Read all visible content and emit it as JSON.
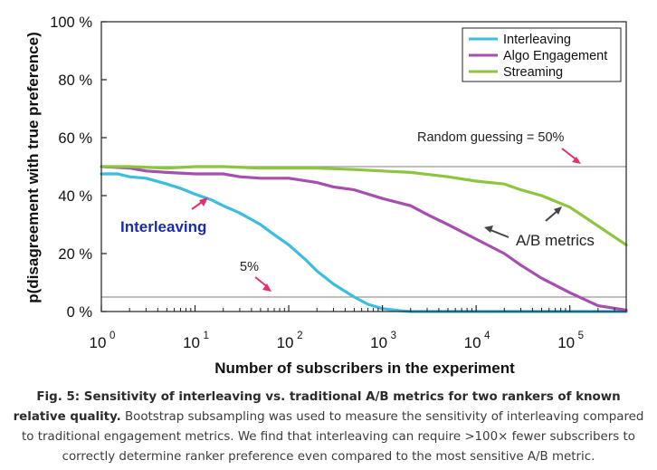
{
  "chart_data": {
    "type": "line",
    "xlabel": "Number of subscribers in the experiment",
    "ylabel": "p(disagreement with true preference)",
    "xscale": "log",
    "xlim": [
      1,
      400000
    ],
    "ylim": [
      0,
      100
    ],
    "x_ticks": [
      {
        "value": 1,
        "base": "10",
        "exp": "0"
      },
      {
        "value": 10,
        "base": "10",
        "exp": "1"
      },
      {
        "value": 100,
        "base": "10",
        "exp": "2"
      },
      {
        "value": 1000,
        "base": "10",
        "exp": "3"
      },
      {
        "value": 10000,
        "base": "10",
        "exp": "4"
      },
      {
        "value": 100000,
        "base": "10",
        "exp": "5"
      }
    ],
    "y_ticks": [
      {
        "value": 0,
        "label": "0 %"
      },
      {
        "value": 20,
        "label": "20 %"
      },
      {
        "value": 40,
        "label": "40 %"
      },
      {
        "value": 60,
        "label": "60 %"
      },
      {
        "value": 80,
        "label": "80 %"
      },
      {
        "value": 100,
        "label": "100 %"
      }
    ],
    "grid": false,
    "legend_position": "top-right",
    "reference_lines": [
      {
        "y": 50,
        "label": "Random guessing = 50%",
        "color": "#999999"
      },
      {
        "y": 5,
        "label": "5%",
        "color": "#999999"
      }
    ],
    "series": [
      {
        "name": "Interleaving",
        "color": "#3bbde0",
        "x": [
          1,
          1.5,
          2,
          3,
          5,
          7,
          10,
          15,
          20,
          30,
          50,
          70,
          100,
          150,
          200,
          300,
          500,
          700,
          1000,
          1500,
          2000,
          5000,
          10000,
          100000,
          400000
        ],
        "y": [
          47.5,
          47.5,
          46.5,
          46,
          44,
          42.5,
          40.5,
          38.5,
          36.5,
          34,
          30,
          26.5,
          23,
          18,
          14,
          9.5,
          5,
          2.5,
          1,
          0.3,
          0,
          0,
          0,
          0,
          0
        ]
      },
      {
        "name": "Algo Engagement",
        "color": "#a64fb0",
        "x": [
          1,
          2,
          3,
          5,
          10,
          20,
          30,
          50,
          100,
          200,
          300,
          500,
          1000,
          2000,
          3000,
          5000,
          10000,
          20000,
          30000,
          50000,
          100000,
          200000,
          400000
        ],
        "y": [
          50,
          49.5,
          48.5,
          48,
          47.5,
          47.5,
          46.5,
          46,
          46,
          44.5,
          43,
          42,
          39,
          36.5,
          33.5,
          30,
          25,
          20,
          16,
          11.5,
          6.5,
          2,
          0.5
        ]
      },
      {
        "name": "Streaming",
        "color": "#8cc63f",
        "x": [
          1,
          2,
          5,
          10,
          20,
          50,
          100,
          200,
          500,
          1000,
          2000,
          5000,
          10000,
          20000,
          30000,
          50000,
          100000,
          200000,
          400000
        ],
        "y": [
          50,
          50,
          49.5,
          50,
          50,
          49.5,
          49.5,
          49.5,
          49,
          48.5,
          48,
          46.5,
          45,
          44,
          42,
          40,
          36,
          29.5,
          23
        ]
      }
    ],
    "annotations": [
      {
        "text": "Interleaving",
        "color": "#1a2cab"
      },
      {
        "text": "A/B metrics",
        "color": "#222222"
      }
    ]
  },
  "caption": {
    "bold": "Fig. 5: Sensitivity of interleaving vs. traditional A/B metrics for two rankers of known relative quality.",
    "text": "Bootstrap subsampling was used to measure the sensitivity of interleaving compared to traditional engagement metrics. We find that interleaving can require >100× fewer subscribers to correctly determine ranker preference even compared to the most sensitive A/B metric."
  }
}
